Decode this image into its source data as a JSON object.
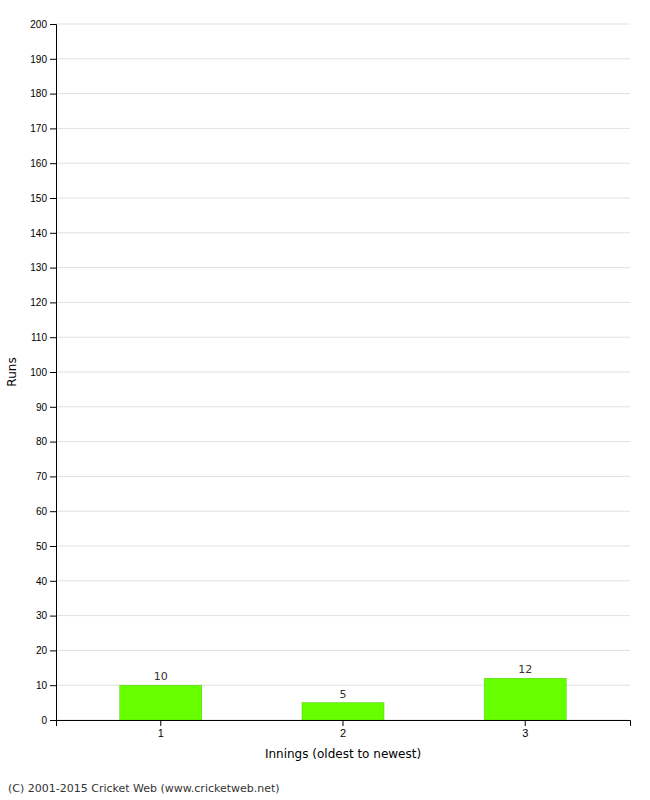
{
  "chart_data": {
    "type": "bar",
    "categories": [
      "1",
      "2",
      "3"
    ],
    "values": [
      10,
      5,
      12
    ],
    "color": "#66ff00",
    "xlabel": "Innings (oldest to newest)",
    "ylabel": "Runs",
    "ylim": [
      0,
      200
    ],
    "yticks": [
      0,
      10,
      20,
      30,
      40,
      50,
      60,
      70,
      80,
      90,
      100,
      110,
      120,
      130,
      140,
      150,
      160,
      170,
      180,
      190,
      200
    ],
    "grid": true,
    "data_labels": true,
    "annotations": [
      "(C) 2001-2015 Cricket Web (www.cricketweb.net)"
    ]
  }
}
